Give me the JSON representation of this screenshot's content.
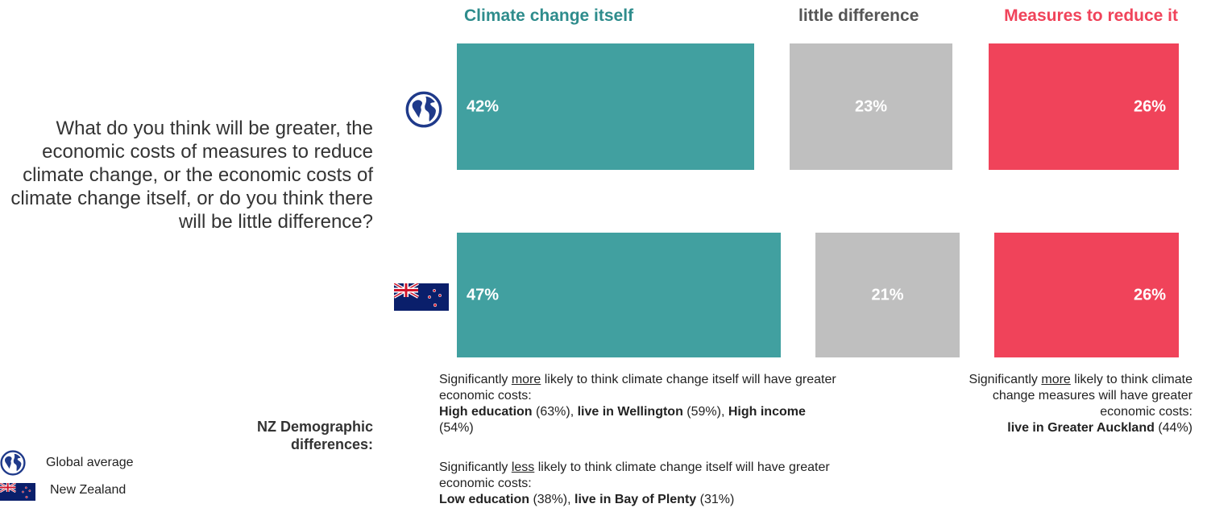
{
  "colors": {
    "teal": "#41a0a0",
    "gray": "#bfbfbf",
    "red": "#f0435a",
    "green_marker": "#1ec45a"
  },
  "question": "What do you think will be greater, the economic costs of measures to reduce climate change, or the economic costs of climate change itself, or do you think there will be little difference?",
  "chart_data": {
    "type": "bar",
    "orientation": "horizontal-stacked",
    "categories": [
      "Global average",
      "New Zealand"
    ],
    "category_icons": [
      "globe-icon",
      "nz-flag-icon"
    ],
    "series": [
      {
        "name": "Climate change itself",
        "values": [
          42,
          47
        ],
        "labels": [
          "42%",
          "47%"
        ],
        "color": "#41a0a0"
      },
      {
        "name": "little difference",
        "values": [
          23,
          21
        ],
        "labels": [
          "23%",
          "21%"
        ],
        "color": "#bfbfbf"
      },
      {
        "name": "Measures to reduce it",
        "values": [
          26,
          26
        ],
        "labels": [
          "26%",
          "26%"
        ],
        "color": "#f0435a"
      }
    ],
    "significance_markers": [
      {
        "category": "New Zealand",
        "series": "Climate change itself",
        "direction": "up",
        "icon": "triangle-up-icon"
      }
    ],
    "legend": [
      {
        "label": "Global average",
        "icon": "globe-icon"
      },
      {
        "label": "New Zealand",
        "icon": "nz-flag-icon"
      }
    ]
  },
  "demographics": {
    "title": "NZ Demographic differences:",
    "more_itself": {
      "pre": "Significantly ",
      "em": "more",
      "post": " likely to think climate change itself will have greater economic costs:",
      "items": [
        {
          "label": "High education",
          "value": " (63%)",
          "sep": ", "
        },
        {
          "label": "live in Wellington",
          "value": " (59%)",
          "sep": ", "
        },
        {
          "label": "High income",
          "value": " (54%)",
          "sep": ""
        }
      ]
    },
    "less_itself": {
      "pre": "Significantly ",
      "em": "less",
      "post": " likely to think climate change itself will have greater economic costs:",
      "items": [
        {
          "label": "Low education",
          "value": " (38%)",
          "sep": ", "
        },
        {
          "label": "live in Bay of Plenty",
          "value": " (31%)",
          "sep": ""
        }
      ]
    },
    "more_measures": {
      "pre": "Significantly ",
      "em": "more",
      "post": " likely to think climate change measures will have greater economic costs:",
      "items": [
        {
          "label": "live in Greater Auckland",
          "value": " (44%)",
          "sep": ""
        }
      ]
    }
  }
}
